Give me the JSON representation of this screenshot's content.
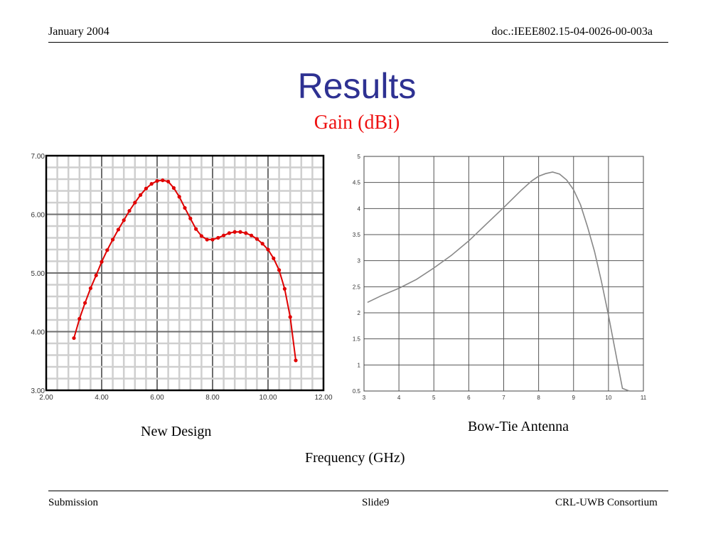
{
  "header": {
    "date": "January 2004",
    "doc_id": "doc.:IEEE802.15-04-0026-00-003a"
  },
  "slide": {
    "title": "Results",
    "subtitle": "Gain (dBi)",
    "caption_left": "New Design",
    "caption_right": "Bow-Tie Antenna",
    "xlabel": "Frequency (GHz)"
  },
  "footer": {
    "left": "Submission",
    "center": "Slide9",
    "right": "CRL-UWB Consortium"
  },
  "chart_data": [
    {
      "type": "line",
      "title": "New Design",
      "xlabel": "Frequency (GHz)",
      "ylabel": "Gain (dBi)",
      "xlim": [
        2,
        12
      ],
      "ylim": [
        3,
        7
      ],
      "x_ticks": [
        "2.00",
        "4.00",
        "6.00",
        "8.00",
        "10.00",
        "12.00"
      ],
      "y_ticks": [
        "3.00",
        "4.00",
        "5.00",
        "6.00",
        "7.00"
      ],
      "grid": true,
      "color": "#e00000",
      "series": [
        {
          "x": [
            3.0,
            3.2,
            3.4,
            3.6,
            3.8,
            4.0,
            4.2,
            4.4,
            4.6,
            4.8,
            5.0,
            5.2,
            5.4,
            5.6,
            5.8,
            6.0,
            6.2,
            6.4,
            6.6,
            6.8,
            7.0,
            7.2,
            7.4,
            7.6,
            7.8,
            8.0,
            8.2,
            8.4,
            8.6,
            8.8,
            9.0,
            9.2,
            9.4,
            9.6,
            9.8,
            10.0,
            10.2,
            10.4,
            10.6,
            10.8,
            11.0
          ],
          "y": [
            3.89,
            4.22,
            4.49,
            4.74,
            4.96,
            5.19,
            5.39,
            5.57,
            5.74,
            5.9,
            6.06,
            6.2,
            6.33,
            6.44,
            6.52,
            6.57,
            6.58,
            6.56,
            6.45,
            6.3,
            6.11,
            5.93,
            5.75,
            5.63,
            5.57,
            5.57,
            5.6,
            5.64,
            5.68,
            5.7,
            5.7,
            5.68,
            5.64,
            5.58,
            5.5,
            5.4,
            5.25,
            5.05,
            4.73,
            4.25,
            3.51
          ]
        }
      ]
    },
    {
      "type": "line",
      "title": "Bow-Tie Antenna",
      "xlabel": "Frequency (GHz)",
      "ylabel": "Gain (dBi)",
      "xlim": [
        3,
        11
      ],
      "ylim": [
        0.5,
        5
      ],
      "x_ticks": [
        "3",
        "4",
        "5",
        "6",
        "7",
        "8",
        "9",
        "10",
        "11"
      ],
      "y_ticks": [
        "0.5",
        "1",
        "1.5",
        "2",
        "2.5",
        "3",
        "3.5",
        "4",
        "4.5",
        "5"
      ],
      "grid": true,
      "color": "#888888",
      "series": [
        {
          "x": [
            3.1,
            3.5,
            4.0,
            4.5,
            5.0,
            5.5,
            6.0,
            6.5,
            7.0,
            7.5,
            7.8,
            8.0,
            8.2,
            8.4,
            8.6,
            8.8,
            9.0,
            9.2,
            9.4,
            9.6,
            9.8,
            10.0,
            10.2,
            10.4,
            10.6
          ],
          "y": [
            2.2,
            2.33,
            2.47,
            2.64,
            2.86,
            3.1,
            3.38,
            3.7,
            4.02,
            4.35,
            4.53,
            4.62,
            4.67,
            4.7,
            4.66,
            4.55,
            4.36,
            4.07,
            3.65,
            3.18,
            2.6,
            1.95,
            1.25,
            0.55,
            0.5
          ]
        }
      ]
    }
  ]
}
